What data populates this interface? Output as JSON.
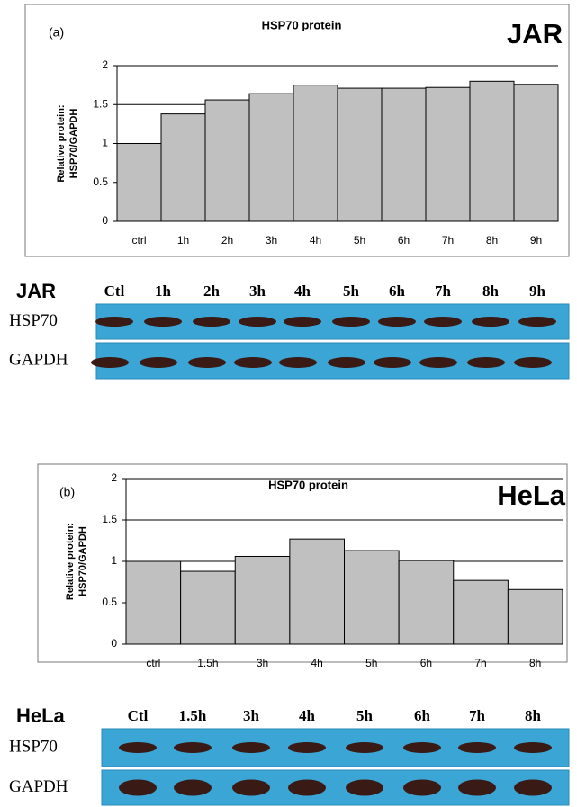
{
  "chart_data": [
    {
      "type": "bar",
      "panel": "(a)",
      "title": "HSP70 protein",
      "cell_line": "JAR",
      "y_label": [
        "Relative protein:",
        "HSP70/GAPDH"
      ],
      "categories": [
        "ctrl",
        "1h",
        "2h",
        "3h",
        "4h",
        "5h",
        "6h",
        "7h",
        "8h",
        "9h"
      ],
      "values": [
        1.0,
        1.38,
        1.56,
        1.64,
        1.75,
        1.71,
        1.71,
        1.72,
        1.8,
        1.76
      ],
      "color": "#c0c0c0",
      "ylim": [
        0,
        2
      ],
      "yticks": [
        0,
        0.5,
        1,
        1.5,
        2
      ],
      "grid": true
    },
    {
      "type": "bar",
      "panel": "(b)",
      "title": "HSP70 protein",
      "cell_line": "HeLa",
      "y_label": [
        "Relative protein:",
        "HSP70/GAPDH"
      ],
      "categories": [
        "ctrl",
        "1.5h",
        "3h",
        "4h",
        "5h",
        "6h",
        "7h",
        "8h"
      ],
      "values": [
        1.0,
        0.88,
        1.06,
        1.27,
        1.13,
        1.01,
        0.77,
        0.66
      ],
      "color": "#c0c0c0",
      "ylim": [
        0,
        2
      ],
      "yticks": [
        0,
        0.5,
        1,
        1.5,
        2
      ],
      "grid": true
    }
  ],
  "blots": [
    {
      "cell_line": "JAR",
      "lanes": [
        "Ctl",
        "1h",
        "2h",
        "3h",
        "4h",
        "5h",
        "6h",
        "7h",
        "8h",
        "9h"
      ],
      "rows": [
        "HSP70",
        "GAPDH"
      ]
    },
    {
      "cell_line": "HeLa",
      "lanes": [
        "Ctl",
        "1.5h",
        "3h",
        "4h",
        "5h",
        "6h",
        "7h",
        "8h"
      ],
      "rows": [
        "HSP70",
        "GAPDH"
      ]
    }
  ]
}
